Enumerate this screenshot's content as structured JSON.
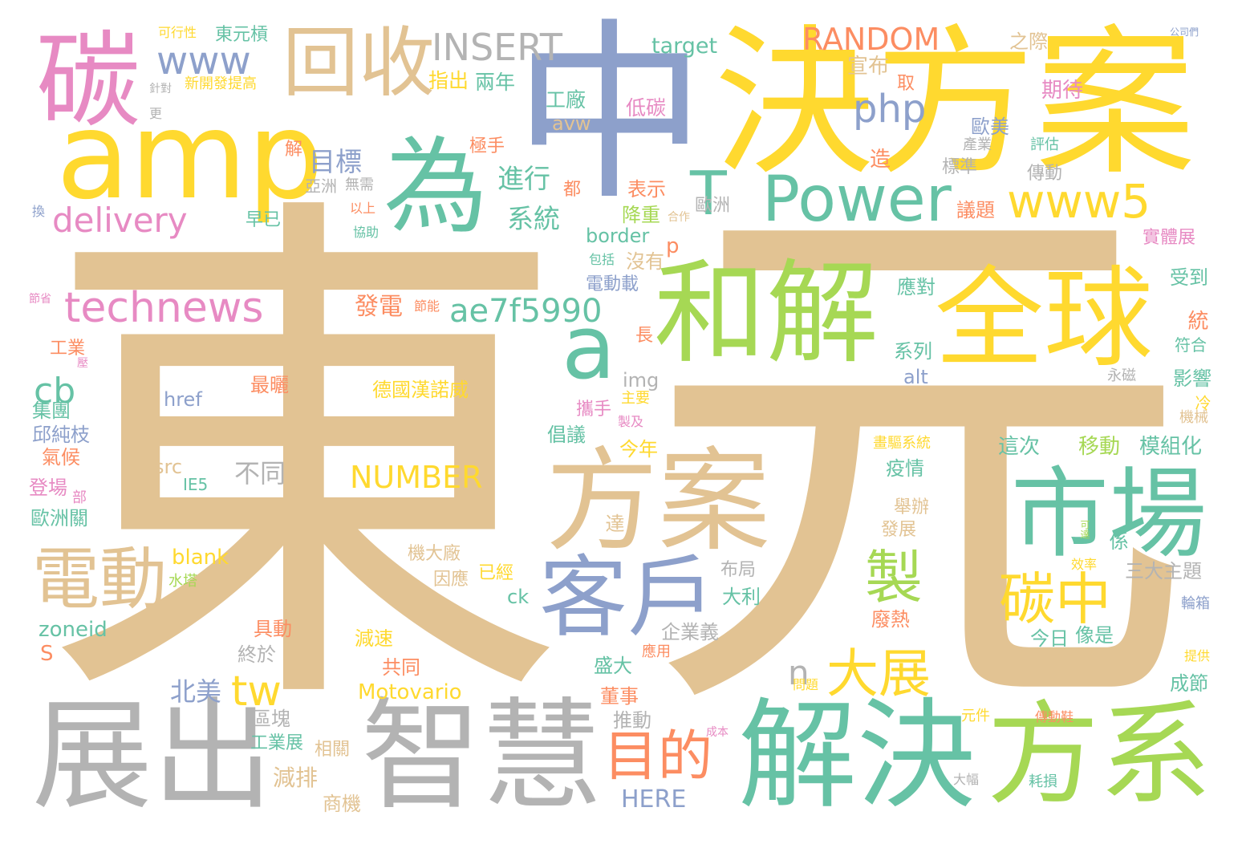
{
  "palette": {
    "tan": "#e2c393",
    "blue": "#8da0cb",
    "yellow": "#ffd92f",
    "green": "#66c2a5",
    "lime": "#a6d854",
    "pink": "#e78ac3",
    "orange": "#fc8d62",
    "gray": "#b3b3b3"
  },
  "words": [
    {
      "text": "東",
      "color": "tan"
    },
    {
      "text": "元",
      "color": "tan"
    },
    {
      "text": "中",
      "color": "blue"
    },
    {
      "text": "決方案",
      "color": "yellow"
    },
    {
      "text": "碳",
      "color": "pink"
    },
    {
      "text": "回收",
      "color": "tan"
    },
    {
      "text": "www",
      "color": "blue"
    },
    {
      "text": "INSERT",
      "color": "gray"
    },
    {
      "text": "RANDOM",
      "color": "orange"
    },
    {
      "text": "target",
      "color": "green"
    },
    {
      "text": "東元槓",
      "color": "green"
    },
    {
      "text": "可行性",
      "color": "yellow"
    },
    {
      "text": "之際",
      "color": "tan"
    },
    {
      "text": "公司們",
      "color": "blue"
    },
    {
      "text": "amp",
      "color": "yellow"
    },
    {
      "text": "為",
      "color": "green"
    },
    {
      "text": "php",
      "color": "blue"
    },
    {
      "text": "和解",
      "color": "lime"
    },
    {
      "text": "全球",
      "color": "yellow"
    },
    {
      "text": "T",
      "color": "green"
    },
    {
      "text": "Power",
      "color": "green"
    },
    {
      "text": "www5",
      "color": "yellow"
    },
    {
      "text": "delivery",
      "color": "pink"
    },
    {
      "text": "technews",
      "color": "pink"
    },
    {
      "text": "a",
      "color": "green"
    },
    {
      "text": "ae7f5990",
      "color": "green"
    },
    {
      "text": "方案",
      "color": "tan"
    },
    {
      "text": "市場",
      "color": "green"
    },
    {
      "text": "電動",
      "color": "tan"
    },
    {
      "text": "客戶",
      "color": "blue"
    },
    {
      "text": "製",
      "color": "lime"
    },
    {
      "text": "碳中",
      "color": "yellow"
    },
    {
      "text": "大展",
      "color": "yellow"
    },
    {
      "text": "n",
      "color": "gray"
    },
    {
      "text": "展出",
      "color": "gray"
    },
    {
      "text": "智慧",
      "color": "gray"
    },
    {
      "text": "目的",
      "color": "orange"
    },
    {
      "text": "解決",
      "color": "green"
    },
    {
      "text": "方系",
      "color": "lime"
    },
    {
      "text": "tw",
      "color": "yellow"
    },
    {
      "text": "北美",
      "color": "blue"
    },
    {
      "text": "cb",
      "color": "green"
    },
    {
      "text": "NUMBER",
      "color": "yellow"
    },
    {
      "text": "目標",
      "color": "blue"
    },
    {
      "text": "進行",
      "color": "green"
    },
    {
      "text": "系統",
      "color": "green"
    },
    {
      "text": "指出",
      "color": "yellow"
    },
    {
      "text": "兩年",
      "color": "green"
    },
    {
      "text": "工廠",
      "color": "green"
    },
    {
      "text": "低碳",
      "color": "pink"
    },
    {
      "text": "avw",
      "color": "tan"
    },
    {
      "text": "宣布",
      "color": "tan"
    },
    {
      "text": "期待",
      "color": "pink"
    },
    {
      "text": "歐美",
      "color": "blue"
    },
    {
      "text": "表示",
      "color": "orange"
    },
    {
      "text": "降重",
      "color": "lime"
    },
    {
      "text": "border",
      "color": "green"
    },
    {
      "text": "沒有",
      "color": "tan"
    },
    {
      "text": "p",
      "color": "orange"
    },
    {
      "text": "電動載",
      "color": "blue"
    },
    {
      "text": "發電",
      "color": "orange"
    },
    {
      "text": "應對",
      "color": "green"
    },
    {
      "text": "系列",
      "color": "green"
    },
    {
      "text": "alt",
      "color": "blue"
    },
    {
      "text": "img",
      "color": "gray"
    },
    {
      "text": "href",
      "color": "blue"
    },
    {
      "text": "德國漢諾威",
      "color": "yellow"
    },
    {
      "text": "最曬",
      "color": "orange"
    },
    {
      "text": "攜手",
      "color": "pink"
    },
    {
      "text": "倡議",
      "color": "green"
    },
    {
      "text": "今年",
      "color": "yellow"
    },
    {
      "text": "不同",
      "color": "gray"
    },
    {
      "text": "src",
      "color": "tan"
    },
    {
      "text": "IE5",
      "color": "green"
    },
    {
      "text": "blank",
      "color": "yellow"
    },
    {
      "text": "zoneid",
      "color": "green"
    },
    {
      "text": "S",
      "color": "orange"
    },
    {
      "text": "具動",
      "color": "orange"
    },
    {
      "text": "終於",
      "color": "gray"
    },
    {
      "text": "減速",
      "color": "yellow"
    },
    {
      "text": "共同",
      "color": "orange"
    },
    {
      "text": "Motovario",
      "color": "yellow"
    },
    {
      "text": "工業展",
      "color": "green"
    },
    {
      "text": "相關",
      "color": "tan"
    },
    {
      "text": "減排",
      "color": "tan"
    },
    {
      "text": "商機",
      "color": "tan"
    },
    {
      "text": "區塊",
      "color": "gray"
    },
    {
      "text": "推動",
      "color": "gray"
    },
    {
      "text": "HERE",
      "color": "blue"
    },
    {
      "text": "董事",
      "color": "orange"
    },
    {
      "text": "盛大",
      "color": "green"
    },
    {
      "text": "企業義",
      "color": "gray"
    },
    {
      "text": "大利",
      "color": "green"
    },
    {
      "text": "布局",
      "color": "gray"
    },
    {
      "text": "因應",
      "color": "tan"
    },
    {
      "text": "已經",
      "color": "yellow"
    },
    {
      "text": "ck",
      "color": "green"
    },
    {
      "text": "機大廠",
      "color": "tan"
    },
    {
      "text": "發展",
      "color": "tan"
    },
    {
      "text": "舉辦",
      "color": "tan"
    },
    {
      "text": "疫情",
      "color": "green"
    },
    {
      "text": "廢熱",
      "color": "orange"
    },
    {
      "text": "今日",
      "color": "green"
    },
    {
      "text": "像是",
      "color": "green"
    },
    {
      "text": "移動",
      "color": "lime"
    },
    {
      "text": "這次",
      "color": "green"
    },
    {
      "text": "模組化",
      "color": "green"
    },
    {
      "text": "三大主題",
      "color": "gray"
    },
    {
      "text": "成節",
      "color": "green"
    },
    {
      "text": "影響",
      "color": "green"
    },
    {
      "text": "受到",
      "color": "green"
    },
    {
      "text": "實體展",
      "color": "pink"
    },
    {
      "text": "議題",
      "color": "orange"
    },
    {
      "text": "標準",
      "color": "gray"
    },
    {
      "text": "傳動",
      "color": "gray"
    },
    {
      "text": "產業",
      "color": "gray"
    },
    {
      "text": "評估",
      "color": "green"
    },
    {
      "text": "造",
      "color": "orange"
    },
    {
      "text": "取",
      "color": "orange"
    },
    {
      "text": "歐洲",
      "color": "gray"
    },
    {
      "text": "早已",
      "color": "green"
    },
    {
      "text": "亞洲",
      "color": "gray"
    },
    {
      "text": "無需",
      "color": "gray"
    },
    {
      "text": "都",
      "color": "orange"
    },
    {
      "text": "極手",
      "color": "orange"
    },
    {
      "text": "以上",
      "color": "orange"
    },
    {
      "text": "協助",
      "color": "green"
    },
    {
      "text": "解",
      "color": "orange"
    },
    {
      "text": "新開發提高",
      "color": "yellow"
    },
    {
      "text": "針對",
      "color": "gray"
    },
    {
      "text": "更",
      "color": "gray"
    },
    {
      "text": "換",
      "color": "blue"
    },
    {
      "text": "工業",
      "color": "orange"
    },
    {
      "text": "集團",
      "color": "green"
    },
    {
      "text": "邱純枝",
      "color": "blue"
    },
    {
      "text": "氣候",
      "color": "orange"
    },
    {
      "text": "登場",
      "color": "pink"
    },
    {
      "text": "歐洲關",
      "color": "green"
    },
    {
      "text": "長",
      "color": "orange"
    },
    {
      "text": "永磁",
      "color": "gray"
    },
    {
      "text": "符合",
      "color": "green"
    },
    {
      "text": "機械",
      "color": "tan"
    },
    {
      "text": "統",
      "color": "orange"
    },
    {
      "text": "效率",
      "color": "yellow"
    },
    {
      "text": "元件",
      "color": "yellow"
    },
    {
      "text": "大幅",
      "color": "gray"
    },
    {
      "text": "耗損",
      "color": "green"
    },
    {
      "text": "傳動鞋",
      "color": "orange"
    },
    {
      "text": "提供",
      "color": "yellow"
    },
    {
      "text": "輪箱",
      "color": "blue"
    },
    {
      "text": "係",
      "color": "green"
    },
    {
      "text": "可達",
      "color": "lime"
    },
    {
      "text": "畫驅系統",
      "color": "yellow"
    },
    {
      "text": "主要",
      "color": "yellow"
    },
    {
      "text": "製及",
      "color": "pink"
    },
    {
      "text": "節能",
      "color": "orange"
    },
    {
      "text": "水塔",
      "color": "lime"
    },
    {
      "text": "應用",
      "color": "orange"
    },
    {
      "text": "達",
      "color": "tan"
    },
    {
      "text": "問題",
      "color": "yellow"
    },
    {
      "text": "成本",
      "color": "pink"
    },
    {
      "text": "包括",
      "color": "green"
    },
    {
      "text": "合作",
      "color": "tan"
    },
    {
      "text": "節省",
      "color": "pink"
    },
    {
      "text": "冷",
      "color": "yellow"
    },
    {
      "text": "部",
      "color": "pink"
    },
    {
      "text": "壓",
      "color": "pink"
    }
  ]
}
